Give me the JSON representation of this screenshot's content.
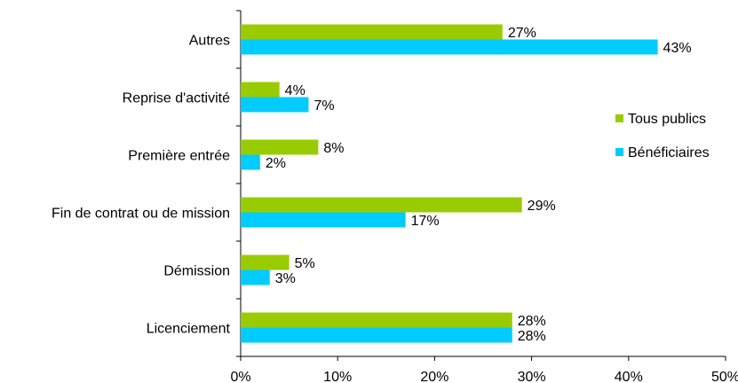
{
  "chart_data": {
    "type": "bar",
    "orientation": "horizontal",
    "categories": [
      "Autres",
      "Reprise d'activité",
      "Première entrée",
      "Fin de contrat ou de mission",
      "Démission",
      "Licenciement"
    ],
    "series": [
      {
        "name": "Tous publics",
        "color": "#99cc00",
        "values": [
          27,
          4,
          8,
          29,
          5,
          28
        ],
        "labels": [
          "27%",
          "4%",
          "8%",
          "29%",
          "5%",
          "28%"
        ]
      },
      {
        "name": "Bénéficiaires",
        "color": "#00ccff",
        "values": [
          43,
          7,
          2,
          17,
          3,
          28
        ],
        "labels": [
          "43%",
          "7%",
          "2%",
          "17%",
          "3%",
          "28%"
        ]
      }
    ],
    "xlim": [
      0,
      50
    ],
    "xticks": [
      "0%",
      "10%",
      "20%",
      "30%",
      "40%",
      "50%"
    ],
    "legend_position": "right",
    "grid": false
  }
}
